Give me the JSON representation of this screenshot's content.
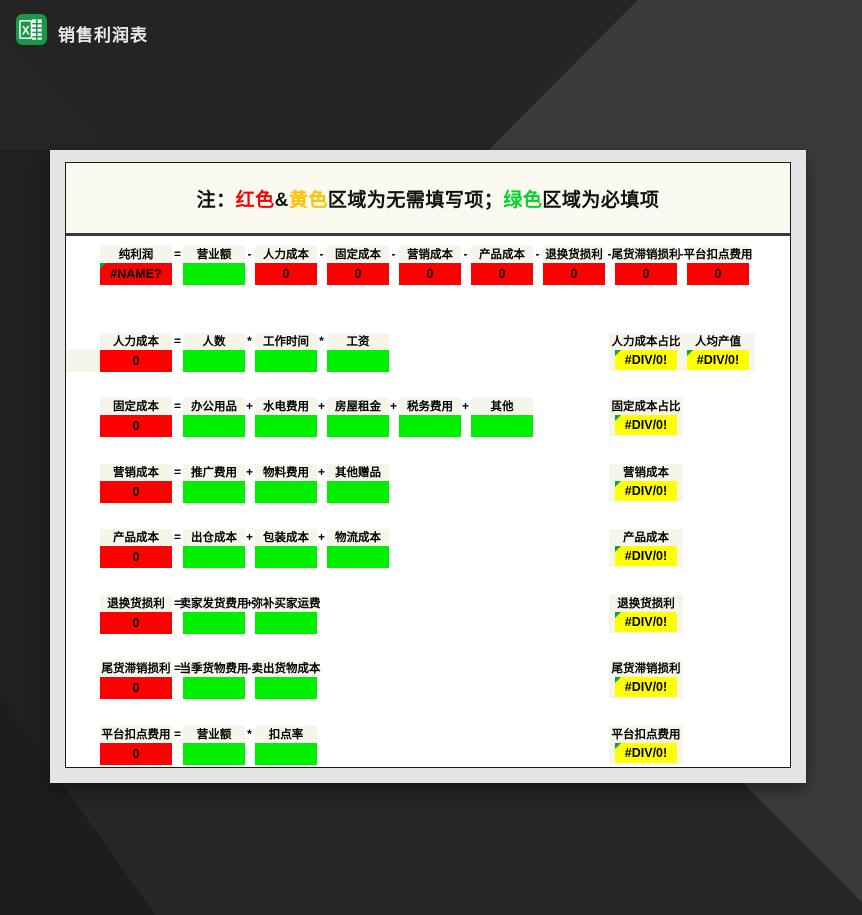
{
  "app": {
    "title": "销售利润表",
    "icon": "excel-icon"
  },
  "note": {
    "prefix": "注：",
    "red_word": "红色",
    "amp": "&",
    "yellow_word": "黄色",
    "mid": "区域为无需填写项；",
    "green_word": "绿色",
    "suffix": "区域为必填项",
    "red_color": "#ff0000",
    "yellow_color": "#ffc000",
    "green_color": "#00d327"
  },
  "colors": {
    "cell_red": "#fe0000",
    "cell_green": "#00ee00",
    "cell_yellow": "#ffff00",
    "cream": "#f6f5ea",
    "marker_green": "#00a650"
  },
  "sections": [
    {
      "name": "纯利润",
      "result": "#NAME?",
      "result_marker": true,
      "left_band": false,
      "terms": [
        {
          "op": "=",
          "label": "营业额",
          "cell": "green",
          "value": ""
        },
        {
          "op": "-",
          "label": "人力成本",
          "cell": "red",
          "value": "0"
        },
        {
          "op": "-",
          "label": "固定成本",
          "cell": "red",
          "value": "0"
        },
        {
          "op": "-",
          "label": "营销成本",
          "cell": "red",
          "value": "0"
        },
        {
          "op": "-",
          "label": "产品成本",
          "cell": "red",
          "value": "0"
        },
        {
          "op": "-",
          "label": "退换货损利",
          "cell": "red",
          "value": "0"
        },
        {
          "op": "-",
          "label": "尾货滞销损利",
          "cell": "red",
          "value": "0"
        },
        {
          "op": "-",
          "label": "平台扣点费用",
          "cell": "red",
          "value": "0"
        }
      ],
      "right": []
    },
    {
      "name": "人力成本",
      "result": "0",
      "result_marker": false,
      "left_band": true,
      "terms": [
        {
          "op": "=",
          "label": "人数",
          "cell": "green",
          "value": ""
        },
        {
          "op": "*",
          "label": "工作时间",
          "cell": "green",
          "value": ""
        },
        {
          "op": "*",
          "label": "工资",
          "cell": "green",
          "value": ""
        }
      ],
      "right": [
        {
          "label": "人力成本占比",
          "value": "#DIV/0!"
        },
        {
          "label": "人均产值",
          "value": "#DIV/0!"
        }
      ]
    },
    {
      "name": "固定成本",
      "result": "0",
      "result_marker": false,
      "left_band": false,
      "terms": [
        {
          "op": "=",
          "label": "办公用品",
          "cell": "green",
          "value": ""
        },
        {
          "op": "+",
          "label": "水电费用",
          "cell": "green",
          "value": ""
        },
        {
          "op": "+",
          "label": "房屋租金",
          "cell": "green",
          "value": ""
        },
        {
          "op": "+",
          "label": "税务费用",
          "cell": "green",
          "value": ""
        },
        {
          "op": "+",
          "label": "其他",
          "cell": "green",
          "value": ""
        }
      ],
      "right": [
        {
          "label": "固定成本占比",
          "value": "#DIV/0!"
        }
      ]
    },
    {
      "name": "营销成本",
      "result": "0",
      "result_marker": false,
      "left_band": false,
      "terms": [
        {
          "op": "=",
          "label": "推广费用",
          "cell": "green",
          "value": ""
        },
        {
          "op": "+",
          "label": "物料费用",
          "cell": "green",
          "value": ""
        },
        {
          "op": "+",
          "label": "其他赠品",
          "cell": "green",
          "value": ""
        }
      ],
      "right": [
        {
          "label": "营销成本",
          "value": "#DIV/0!"
        }
      ]
    },
    {
      "name": "产品成本",
      "result": "0",
      "result_marker": false,
      "left_band": false,
      "terms": [
        {
          "op": "=",
          "label": "出仓成本",
          "cell": "green",
          "value": ""
        },
        {
          "op": "+",
          "label": "包装成本",
          "cell": "green",
          "value": ""
        },
        {
          "op": "+",
          "label": "物流成本",
          "cell": "green",
          "value": ""
        }
      ],
      "right": [
        {
          "label": "产品成本",
          "value": "#DIV/0!"
        }
      ]
    },
    {
      "name": "退换货损利",
      "result": "0",
      "result_marker": false,
      "left_band": false,
      "terms": [
        {
          "op": "=",
          "label": "卖家发货费用",
          "cell": "green",
          "value": ""
        },
        {
          "op": "+",
          "label": "弥补买家运费",
          "cell": "green",
          "value": ""
        }
      ],
      "right": [
        {
          "label": "退换货损利",
          "value": "#DIV/0!"
        }
      ]
    },
    {
      "name": "尾货滞销损利",
      "result": "0",
      "result_marker": false,
      "left_band": false,
      "terms": [
        {
          "op": "=",
          "label": "当季货物费用",
          "cell": "green",
          "value": ""
        },
        {
          "op": "-",
          "label": "卖出货物成本",
          "cell": "green",
          "value": ""
        }
      ],
      "right": [
        {
          "label": "尾货滞销损利",
          "value": "#DIV/0!"
        }
      ]
    },
    {
      "name": "平台扣点费用",
      "result": "0",
      "result_marker": false,
      "left_band": false,
      "terms": [
        {
          "op": "=",
          "label": "营业额",
          "cell": "green",
          "value": ""
        },
        {
          "op": "*",
          "label": "扣点率",
          "cell": "green",
          "value": ""
        }
      ],
      "right": [
        {
          "label": "平台扣点费用",
          "value": "#DIV/0!"
        }
      ]
    }
  ]
}
